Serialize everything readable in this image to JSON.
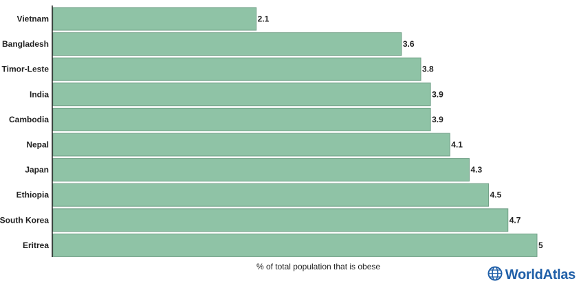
{
  "chart_data": {
    "type": "bar",
    "orientation": "horizontal",
    "categories": [
      "Vietnam",
      "Bangladesh",
      "Timor-Leste",
      "India",
      "Cambodia",
      "Nepal",
      "Japan",
      "Ethiopia",
      "South Korea",
      "Eritrea"
    ],
    "values": [
      2.1,
      3.6,
      3.8,
      3.9,
      3.9,
      4.1,
      4.3,
      4.5,
      4.7,
      5
    ],
    "value_labels": [
      "2.1",
      "3.6",
      "3.8",
      "3.9",
      "3.9",
      "4.1",
      "4.3",
      "4.5",
      "4.7",
      "5"
    ],
    "xlabel": "% of total population that is obese",
    "ylabel": "",
    "xlim": [
      0,
      5
    ],
    "grid": false,
    "bar_color": "#8fc3a6",
    "bar_edge_color": "#6f9e85"
  },
  "brand": {
    "name": "WorldAtlas",
    "color": "#1f5fa8",
    "icon": "globe-icon"
  }
}
